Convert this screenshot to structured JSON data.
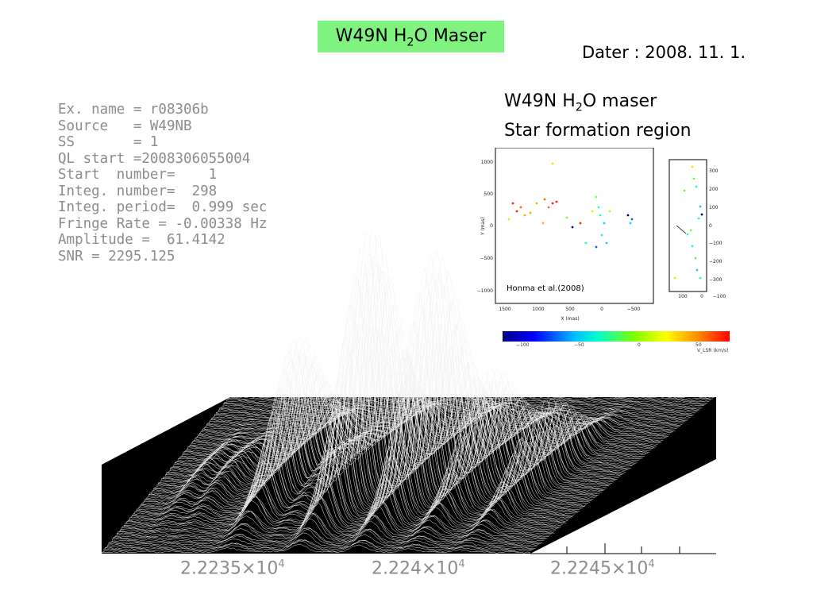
{
  "slide": {
    "title_text": "W49N H",
    "title_sub": "2",
    "title_after": "O Maser",
    "date": "Dater : 2008. 11. 1."
  },
  "info_lines": [
    "Ex. name = r08306b",
    "Source   = W49NB",
    "SS       = 1",
    "QL start =2008306055004",
    "Start  number=    1",
    "Integ. number=  298",
    "Integ. period=  0.999 sec",
    "Fringe Rate = -0.00338 Hz",
    "Amplitude =  61.4142",
    "SNR = 2295.125"
  ],
  "region": {
    "line1_a": "W49N H",
    "line1_sub": "2",
    "line1_b": "O maser",
    "line2": "Star formation region"
  },
  "map": {
    "credit": "Honma et al.(2008)",
    "y_label": "Y (mas)",
    "x_label": "X (mas)",
    "y_ticks": [
      "1000",
      "500",
      "0",
      "−500",
      "−1000"
    ],
    "x_ticks": [
      "1500",
      "1000",
      "500",
      "0",
      "−500"
    ],
    "side_y_ticks": [
      "300",
      "200",
      "100",
      "0",
      "−100",
      "−200",
      "−300"
    ],
    "side_x_ticks": [
      "100",
      "0",
      "−100"
    ],
    "colorbar_ticks": [
      "−100",
      "−50",
      "0",
      "50"
    ],
    "colorbar_label": "V_LSR (km/s)"
  },
  "spectrum": {
    "tick_labels": [
      {
        "base": "2.2235×10",
        "exp": "4"
      },
      {
        "base": "2.224×10",
        "exp": "4"
      },
      {
        "base": "2.2245×10",
        "exp": "4"
      }
    ]
  }
}
